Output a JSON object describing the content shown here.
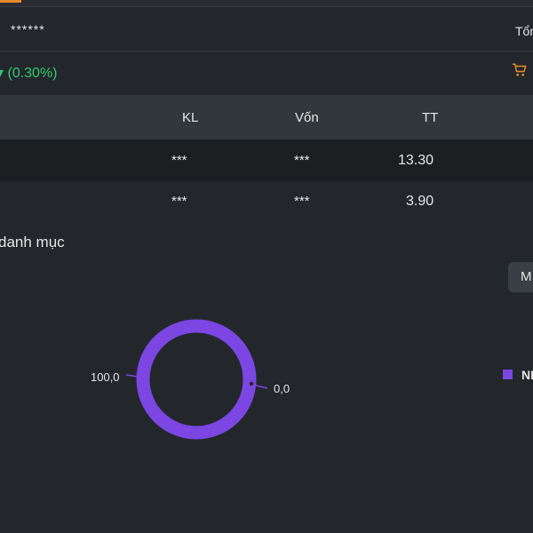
{
  "header": {
    "masked_value": "******",
    "total_label": "Tổng",
    "change_text": "(0.30%)"
  },
  "table": {
    "columns": [
      "KL",
      "Vốn",
      "TT"
    ],
    "rows": [
      {
        "kl": "***",
        "von": "***",
        "tt": "13.30"
      },
      {
        "kl": "***",
        "von": "***",
        "tt": "3.90"
      }
    ]
  },
  "allocation": {
    "title": "danh mục",
    "toggle_label": "M",
    "legend_label": "NH"
  },
  "chart_data": {
    "type": "pie",
    "style": "donut",
    "series": [
      {
        "name": "NH",
        "value": 100.0,
        "color": "#7b46e2"
      },
      {
        "name": "",
        "value": 0.0,
        "color": "#7b46e2"
      }
    ],
    "value_labels": [
      "100,0",
      "0,0"
    ]
  },
  "icons": {
    "cart": "cart-icon",
    "accent_color": "#e7892d",
    "up_color": "#2ecc71"
  }
}
